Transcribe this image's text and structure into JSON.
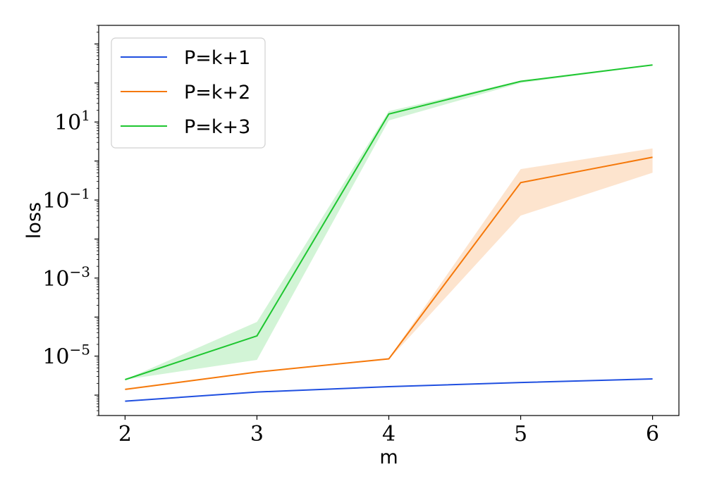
{
  "chart_data": {
    "type": "line",
    "xlabel": "m",
    "ylabel": "loss",
    "y_scale": "log",
    "xlim": [
      1.8,
      6.2
    ],
    "ylim": [
      3e-07,
      3000
    ],
    "x_ticks": [
      2,
      3,
      4,
      5,
      6
    ],
    "x_tick_labels": [
      "2",
      "3",
      "4",
      "5",
      "6"
    ],
    "y_ticks": [
      1e-05,
      0.001,
      0.1,
      10
    ],
    "y_tick_labels": [
      {
        "base": "10",
        "exp": "−5"
      },
      {
        "base": "10",
        "exp": "−3"
      },
      {
        "base": "10",
        "exp": "−1"
      },
      {
        "base": "10",
        "exp": "1"
      }
    ],
    "grid": false,
    "legend_position": "top-left",
    "x": [
      2,
      3,
      4,
      5,
      6
    ],
    "series": [
      {
        "name": "P=k+1",
        "color": "#1f4fe0",
        "values": [
          7e-07,
          1.2e-06,
          1.65e-06,
          2.1e-06,
          2.6e-06
        ]
      },
      {
        "name": "P=k+2",
        "color": "#f5780a",
        "values": [
          1.4e-06,
          3.9e-06,
          8.5e-06,
          0.28,
          1.25
        ],
        "band_lower": [
          1.4e-06,
          3.8e-06,
          8.2e-06,
          0.04,
          0.5
        ],
        "band_upper": [
          1.5e-06,
          4e-06,
          8.9e-06,
          0.62,
          2.1
        ]
      },
      {
        "name": "P=k+3",
        "color": "#1ec630",
        "values": [
          2.5e-06,
          3.3e-05,
          16,
          110,
          290
        ],
        "band_lower": [
          2.5e-06,
          8e-06,
          11,
          100,
          280
        ],
        "band_upper": [
          2.5e-06,
          7.5e-05,
          19,
          115,
          300
        ]
      }
    ]
  }
}
